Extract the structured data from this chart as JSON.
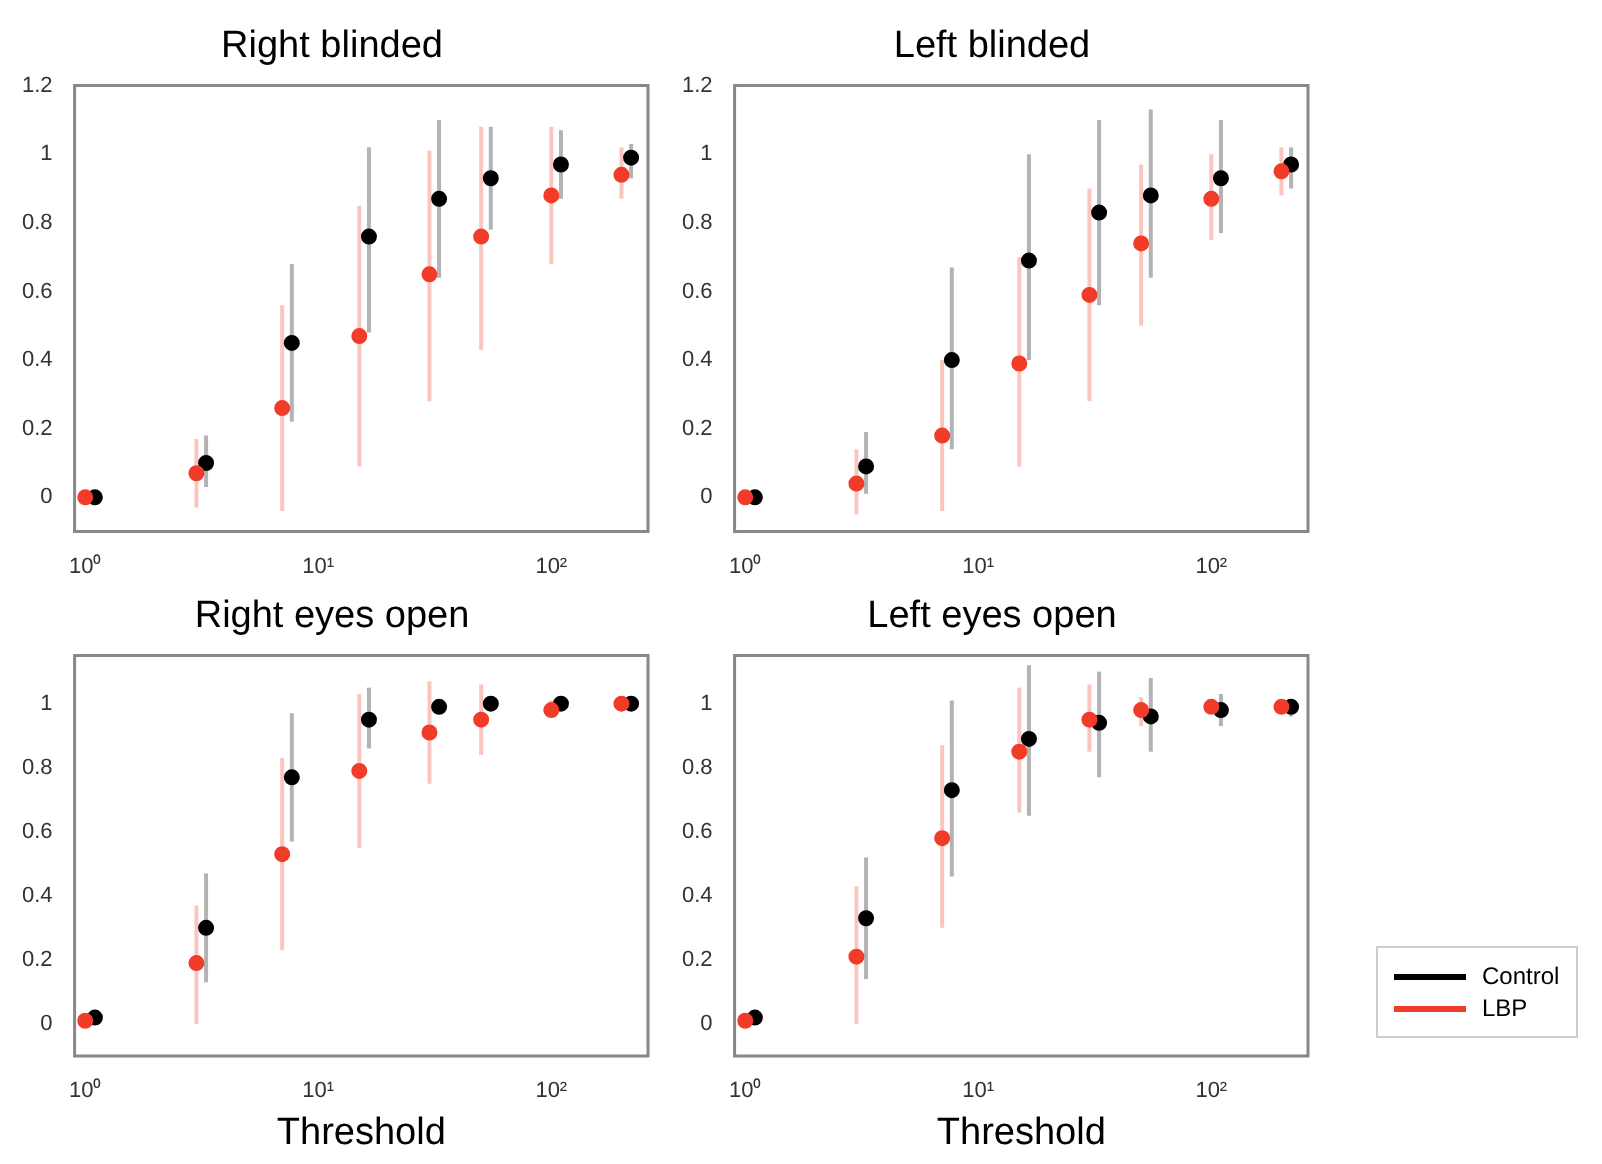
{
  "chart_data": [
    {
      "type": "scatter",
      "title": "Right blinded",
      "log": "x",
      "grid": false,
      "marker": "circle",
      "xlim": [
        0.9,
        260
      ],
      "xticks": [
        {
          "value": 1,
          "label": "10⁰"
        },
        {
          "value": 10,
          "label": "10¹"
        },
        {
          "value": 100,
          "label": "10²"
        }
      ],
      "ylim": [
        -0.1,
        1.2
      ],
      "yticks": [
        0,
        0.2,
        0.4,
        0.6,
        0.8,
        1,
        1.2
      ],
      "series": [
        {
          "color": "#f03c28",
          "x": [
            1,
            3,
            7,
            15,
            30,
            50,
            100,
            200
          ],
          "values": [
            0,
            0.07,
            0.26,
            0.47,
            0.65,
            0.76,
            0.88,
            0.94
          ],
          "errors": [
            null,
            [
              -0.03,
              0.17
            ],
            [
              -0.04,
              0.56
            ],
            [
              0.09,
              0.85
            ],
            [
              0.28,
              1.01
            ],
            [
              0.43,
              1.08
            ],
            [
              0.68,
              1.08
            ],
            [
              0.87,
              1.02
            ]
          ]
        },
        {
          "color": "#000000",
          "x": [
            1.1,
            3.3,
            7.7,
            16.5,
            33,
            55,
            110,
            220
          ],
          "values": [
            0,
            0.1,
            0.45,
            0.76,
            0.87,
            0.93,
            0.97,
            0.99
          ],
          "errors": [
            null,
            [
              0.03,
              0.18
            ],
            [
              0.22,
              0.68
            ],
            [
              0.48,
              1.02
            ],
            [
              0.64,
              1.1
            ],
            [
              0.78,
              1.08
            ],
            [
              0.87,
              1.07
            ],
            [
              0.93,
              1.03
            ]
          ]
        }
      ]
    },
    {
      "type": "scatter",
      "title": "Left blinded",
      "log": "x",
      "grid": false,
      "marker": "circle",
      "xlim": [
        0.9,
        260
      ],
      "xticks": [
        {
          "value": 1,
          "label": "10⁰"
        },
        {
          "value": 10,
          "label": "10¹"
        },
        {
          "value": 100,
          "label": "10²"
        }
      ],
      "ylim": [
        -0.1,
        1.2
      ],
      "yticks": [
        0,
        0.2,
        0.4,
        0.6,
        0.8,
        1,
        1.2
      ],
      "series": [
        {
          "color": "#f03c28",
          "x": [
            1,
            3,
            7,
            15,
            30,
            50,
            100,
            200
          ],
          "values": [
            0,
            0.04,
            0.18,
            0.39,
            0.59,
            0.74,
            0.87,
            0.95
          ],
          "errors": [
            null,
            [
              -0.05,
              0.14
            ],
            [
              -0.04,
              0.4
            ],
            [
              0.09,
              0.7
            ],
            [
              0.28,
              0.9
            ],
            [
              0.5,
              0.97
            ],
            [
              0.75,
              1.0
            ],
            [
              0.88,
              1.02
            ]
          ]
        },
        {
          "color": "#000000",
          "x": [
            1.1,
            3.3,
            7.7,
            16.5,
            33,
            55,
            110,
            220
          ],
          "values": [
            0,
            0.09,
            0.4,
            0.69,
            0.83,
            0.88,
            0.93,
            0.97
          ],
          "errors": [
            null,
            [
              0.01,
              0.19
            ],
            [
              0.14,
              0.67
            ],
            [
              0.4,
              1.0
            ],
            [
              0.56,
              1.1
            ],
            [
              0.64,
              1.13
            ],
            [
              0.77,
              1.1
            ],
            [
              0.9,
              1.02
            ]
          ]
        }
      ]
    },
    {
      "type": "scatter",
      "title": "Right eyes open",
      "xlabel": "Threshold",
      "log": "x",
      "grid": false,
      "marker": "circle",
      "xlim": [
        0.9,
        260
      ],
      "xticks": [
        {
          "value": 1,
          "label": "10⁰"
        },
        {
          "value": 10,
          "label": "10¹"
        },
        {
          "value": 100,
          "label": "10²"
        }
      ],
      "ylim": [
        -0.1,
        1.15
      ],
      "yticks": [
        0,
        0.2,
        0.4,
        0.6,
        0.8,
        1
      ],
      "series": [
        {
          "color": "#f03c28",
          "x": [
            1,
            3,
            7,
            15,
            30,
            50,
            100,
            200
          ],
          "values": [
            0.01,
            0.19,
            0.53,
            0.79,
            0.91,
            0.95,
            0.98,
            1.0
          ],
          "errors": [
            null,
            [
              0.0,
              0.37
            ],
            [
              0.23,
              0.83
            ],
            [
              0.55,
              1.03
            ],
            [
              0.75,
              1.07
            ],
            [
              0.84,
              1.06
            ],
            [
              0.96,
              1.01
            ],
            null
          ]
        },
        {
          "color": "#000000",
          "x": [
            1.1,
            3.3,
            7.7,
            16.5,
            33,
            55,
            110,
            220
          ],
          "values": [
            0.02,
            0.3,
            0.77,
            0.95,
            0.99,
            1.0,
            1.0,
            1.0
          ],
          "errors": [
            null,
            [
              0.13,
              0.47
            ],
            [
              0.57,
              0.97
            ],
            [
              0.86,
              1.05
            ],
            null,
            null,
            null,
            null
          ]
        }
      ]
    },
    {
      "type": "scatter",
      "title": "Left eyes open",
      "xlabel": "Threshold",
      "log": "x",
      "grid": false,
      "marker": "circle",
      "legend": "right",
      "xlim": [
        0.9,
        260
      ],
      "xticks": [
        {
          "value": 1,
          "label": "10⁰"
        },
        {
          "value": 10,
          "label": "10¹"
        },
        {
          "value": 100,
          "label": "10²"
        }
      ],
      "ylim": [
        -0.1,
        1.15
      ],
      "yticks": [
        0,
        0.2,
        0.4,
        0.6,
        0.8,
        1
      ],
      "series": [
        {
          "name": "LBP",
          "color": "#f03c28",
          "x": [
            1,
            3,
            7,
            15,
            30,
            50,
            100,
            200
          ],
          "values": [
            0.01,
            0.21,
            0.58,
            0.85,
            0.95,
            0.98,
            0.99,
            0.99
          ],
          "errors": [
            null,
            [
              0.0,
              0.43
            ],
            [
              0.3,
              0.87
            ],
            [
              0.66,
              1.05
            ],
            [
              0.85,
              1.06
            ],
            [
              0.93,
              1.02
            ],
            null,
            null
          ]
        },
        {
          "name": "Control",
          "color": "#000000",
          "x": [
            1.1,
            3.3,
            7.7,
            16.5,
            33,
            55,
            110,
            220
          ],
          "values": [
            0.02,
            0.33,
            0.73,
            0.89,
            0.94,
            0.96,
            0.98,
            0.99
          ],
          "errors": [
            null,
            [
              0.14,
              0.52
            ],
            [
              0.46,
              1.01
            ],
            [
              0.65,
              1.12
            ],
            [
              0.77,
              1.1
            ],
            [
              0.85,
              1.08
            ],
            [
              0.93,
              1.03
            ],
            [
              0.96,
              1.01
            ]
          ]
        }
      ]
    }
  ]
}
